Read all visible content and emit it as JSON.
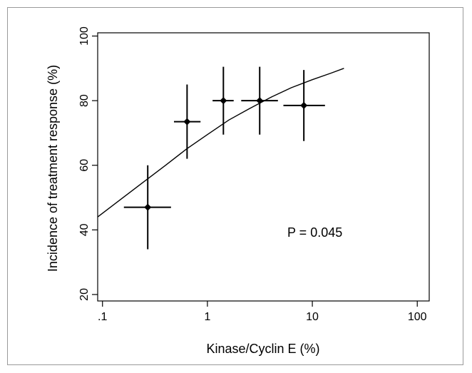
{
  "chart_data": {
    "type": "scatter",
    "title": "",
    "xlabel": "Kinase/Cyclin E (%)",
    "ylabel": "Incidence of treatment response (%)",
    "x_scale": "log",
    "xlim": [
      0.09,
      130
    ],
    "ylim": [
      18,
      101
    ],
    "x_ticks": [
      {
        "value": 0.1,
        "label": ".1"
      },
      {
        "value": 1,
        "label": "1"
      },
      {
        "value": 10,
        "label": "10"
      },
      {
        "value": 100,
        "label": "100"
      }
    ],
    "y_ticks": [
      {
        "value": 20,
        "label": "20"
      },
      {
        "value": 40,
        "label": "40"
      },
      {
        "value": 60,
        "label": "60"
      },
      {
        "value": 80,
        "label": "80"
      },
      {
        "value": 100,
        "label": "100"
      }
    ],
    "grid": false,
    "points": [
      {
        "x": 0.27,
        "y": 47,
        "x_low": 0.16,
        "x_high": 0.45,
        "y_low": 34,
        "y_high": 60
      },
      {
        "x": 0.64,
        "y": 73.5,
        "x_low": 0.48,
        "x_high": 0.86,
        "y_low": 62,
        "y_high": 85
      },
      {
        "x": 1.42,
        "y": 80,
        "x_low": 1.12,
        "x_high": 1.78,
        "y_low": 69.5,
        "y_high": 90.5
      },
      {
        "x": 3.15,
        "y": 80,
        "x_low": 2.1,
        "x_high": 4.7,
        "y_low": 69.5,
        "y_high": 90.5
      },
      {
        "x": 8.3,
        "y": 78.5,
        "x_low": 5.3,
        "x_high": 13.2,
        "y_low": 67.5,
        "y_high": 89.5
      }
    ],
    "fit_curve": {
      "x": [
        0.09,
        0.15,
        0.25,
        0.4,
        0.63,
        1,
        1.6,
        2.5,
        4,
        6.3,
        10,
        15,
        20
      ],
      "y": [
        44,
        49.5,
        55,
        60,
        65,
        69.5,
        74,
        77.5,
        81,
        84,
        86.5,
        88.5,
        90
      ]
    },
    "annotations": [
      {
        "text": "P = 0.045"
      }
    ]
  }
}
